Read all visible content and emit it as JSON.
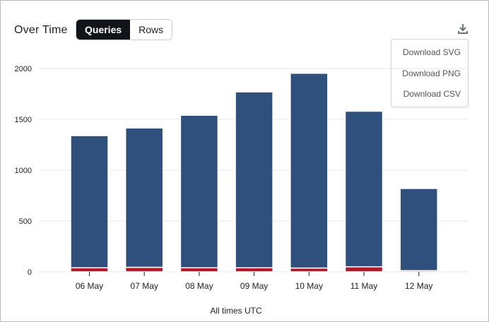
{
  "header": {
    "title": "Over Time",
    "tabs": [
      {
        "label": "Queries",
        "active": true
      },
      {
        "label": "Rows",
        "active": false
      }
    ]
  },
  "download_menu": {
    "icon": "download-icon",
    "items": [
      "Download SVG",
      "Download PNG",
      "Download CSV"
    ]
  },
  "colors": {
    "primary": "#2f4f7c",
    "secondary": "#b5182b",
    "grid": "#e5e7ea"
  },
  "chart_data": {
    "type": "bar",
    "stacked": true,
    "categories": [
      "06 May",
      "07 May",
      "08 May",
      "09 May",
      "10 May",
      "11 May",
      "12 May"
    ],
    "series": [
      {
        "values": [
          40,
          45,
          40,
          40,
          38,
          50,
          12
        ]
      },
      {
        "values": [
          1300,
          1370,
          1500,
          1730,
          1915,
          1530,
          808
        ]
      }
    ],
    "yticks": [
      0,
      500,
      1000,
      1500,
      2000
    ],
    "ylim": [
      0,
      2000
    ],
    "xlabel": "All times UTC",
    "grid": true
  }
}
